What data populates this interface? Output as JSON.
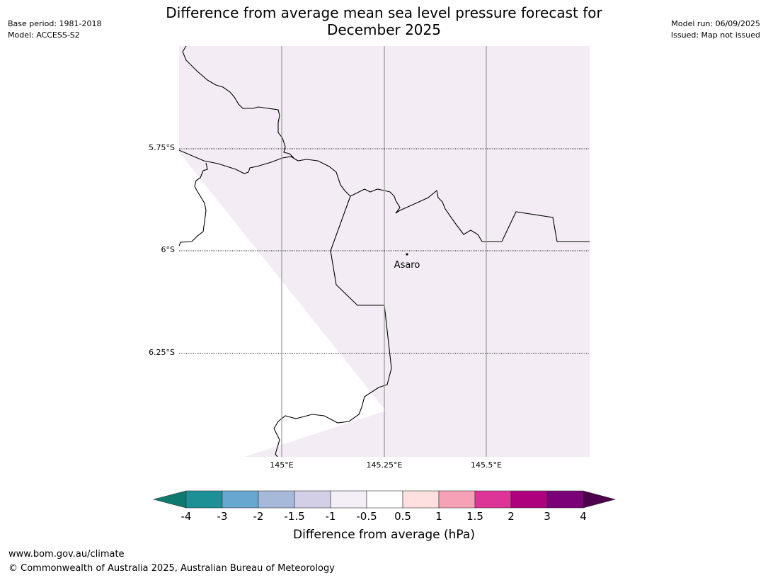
{
  "header": {
    "title_line1": "Difference from average mean sea level pressure forecast for",
    "title_line2": "December 2025",
    "base_period": "Base period: 1981-2018",
    "model": "Model: ACCESS-S2",
    "model_run": "Model run: 06/09/2025",
    "issued": "Issued: Map not issued"
  },
  "map": {
    "lat_labels": [
      "5.75°S",
      "6°S",
      "6.25°S"
    ],
    "lon_labels": [
      "145°E",
      "145.25°E",
      "145.5°E"
    ],
    "place_label": "Asaro",
    "shade_color": "#f3ecf4"
  },
  "colorbar": {
    "colors": [
      "#0e7a6f",
      "#1d9096",
      "#68a7cf",
      "#a7b9db",
      "#d2cfe6",
      "#f4eef6",
      "#ffffff",
      "#fde0df",
      "#f7a1b6",
      "#dd3497",
      "#ae017e",
      "#7a0177",
      "#4d004b"
    ],
    "tick_labels": [
      "-4",
      "-3",
      "-2",
      "-1.5",
      "-1",
      "-0.5",
      "0.5",
      "1",
      "1.5",
      "2",
      "3",
      "4"
    ],
    "title": "Difference from average (hPa)"
  },
  "footer": {
    "url": "www.bom.gov.au/climate",
    "copyright": "© Commonwealth of Australia 2025, Australian Bureau of Meteorology"
  }
}
